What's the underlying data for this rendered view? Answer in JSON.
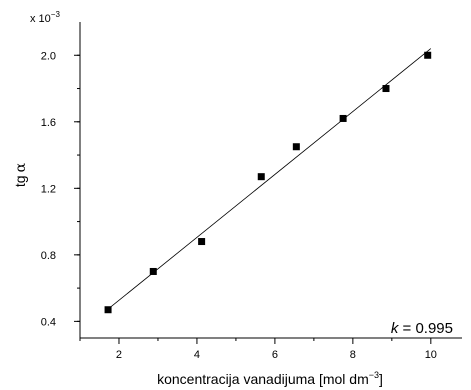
{
  "chart_data": {
    "type": "scatter",
    "title": "",
    "xlabel_main": "koncentracija vanadijuma [mol dm",
    "xlabel_sup": "−3",
    "xlabel_close": "]",
    "ylabel_main": "tg",
    "ylabel_symbol": "α",
    "y_multiplier_base": "x 10",
    "y_multiplier_exp": "−3",
    "xlim": [
      1,
      10.8
    ],
    "ylim": [
      0.3,
      2.2
    ],
    "x_ticks": [
      2,
      4,
      6,
      8,
      10
    ],
    "x_tick_labels": [
      "2",
      "4",
      "6",
      "8",
      "10"
    ],
    "y_ticks": [
      0.4,
      0.8,
      1.2,
      1.6,
      2.0
    ],
    "y_tick_labels": [
      "0.4",
      "0.8",
      "1.2",
      "1.6",
      "2.0"
    ],
    "series": [
      {
        "x": [
          1.72,
          2.88,
          4.12,
          5.65,
          6.55,
          7.75,
          8.85,
          9.92
        ],
        "y": [
          0.47,
          0.7,
          0.88,
          1.27,
          1.45,
          1.62,
          1.8,
          2.0
        ],
        "marker": "square",
        "color": "#000000"
      }
    ],
    "fit_line": {
      "x": [
        1.7,
        10.0
      ],
      "y": [
        0.47,
        2.04
      ],
      "color": "#000000"
    },
    "annotation": {
      "italic": "k",
      "text": " = 0.995"
    },
    "grid": false,
    "legend": "none"
  }
}
